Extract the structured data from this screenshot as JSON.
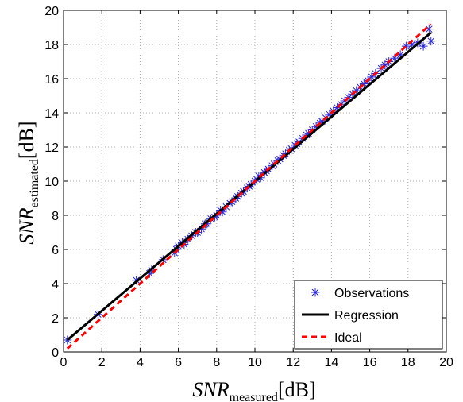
{
  "chart_data": {
    "type": "scatter",
    "xlabel": {
      "main": "SNR",
      "sub": "measured",
      "unit": "[dB]"
    },
    "ylabel": {
      "main": "SNR",
      "sub": "estimated",
      "unit": "[dB]"
    },
    "xlim": [
      0,
      20
    ],
    "ylim": [
      0,
      20
    ],
    "xticks": [
      "0",
      "2",
      "4",
      "6",
      "8",
      "10",
      "12",
      "14",
      "16",
      "18",
      "20"
    ],
    "yticks": [
      "0",
      "2",
      "4",
      "6",
      "8",
      "10",
      "12",
      "14",
      "16",
      "18",
      "20"
    ],
    "grid": true,
    "legend": {
      "placement": "bottom-right"
    },
    "series": [
      {
        "name": "Observations",
        "kind": "markers",
        "marker": "asterisk",
        "color": "#2b2bd6",
        "x": [
          0.2,
          1.8,
          3.8,
          4.5,
          4.6,
          5.2,
          5.8,
          5.9,
          6.0,
          6.2,
          6.3,
          6.5,
          6.7,
          6.9,
          7.0,
          7.2,
          7.4,
          7.5,
          7.7,
          7.9,
          8.0,
          8.2,
          8.3,
          8.5,
          8.7,
          8.8,
          9.0,
          9.1,
          9.3,
          9.4,
          9.6,
          9.7,
          9.8,
          10.0,
          10.1,
          10.2,
          10.3,
          10.5,
          10.6,
          10.7,
          10.9,
          11.0,
          11.2,
          11.3,
          11.5,
          11.6,
          11.8,
          11.9,
          12.1,
          12.2,
          12.3,
          12.5,
          12.7,
          12.8,
          13.0,
          13.2,
          13.4,
          13.5,
          13.7,
          13.9,
          14.1,
          14.3,
          14.5,
          14.7,
          14.9,
          15.1,
          15.3,
          15.5,
          15.7,
          15.9,
          16.1,
          16.3,
          16.6,
          16.8,
          17.0,
          17.3,
          17.6,
          17.9,
          18.2,
          18.5,
          18.8,
          19.1,
          19.2
        ],
        "y": [
          0.7,
          2.2,
          4.2,
          4.6,
          4.8,
          5.4,
          5.8,
          6.0,
          6.2,
          6.4,
          6.3,
          6.6,
          6.8,
          7.0,
          7.0,
          7.2,
          7.5,
          7.5,
          7.8,
          7.9,
          8.0,
          8.3,
          8.2,
          8.5,
          8.7,
          8.8,
          9.0,
          9.1,
          9.3,
          9.4,
          9.6,
          9.7,
          9.8,
          10.0,
          10.1,
          10.3,
          10.2,
          10.5,
          10.6,
          10.7,
          10.9,
          11.0,
          11.2,
          11.3,
          11.5,
          11.6,
          11.8,
          11.9,
          12.1,
          12.2,
          12.3,
          12.5,
          12.7,
          12.8,
          13.0,
          13.2,
          13.4,
          13.5,
          13.7,
          13.9,
          14.1,
          14.3,
          14.5,
          14.7,
          14.9,
          15.1,
          15.3,
          15.5,
          15.7,
          15.9,
          16.1,
          16.3,
          16.6,
          16.8,
          17.0,
          17.2,
          17.4,
          17.9,
          18.0,
          18.1,
          17.9,
          18.9,
          18.2
        ]
      },
      {
        "name": "Regression",
        "kind": "line",
        "color": "#000000",
        "dash": "solid",
        "x": [
          0.2,
          19.2
        ],
        "y": [
          0.7,
          18.7
        ]
      },
      {
        "name": "Ideal",
        "kind": "line",
        "color": "#ff0000",
        "dash": "dashed",
        "x": [
          0.2,
          19.2
        ],
        "y": [
          0.2,
          19.2
        ]
      }
    ]
  }
}
